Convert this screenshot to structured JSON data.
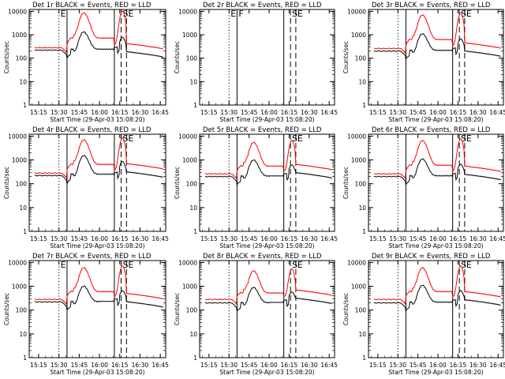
{
  "chart_data": [
    {
      "type": "line",
      "title": "Det 1r  BLACK = Events, RED = LLD",
      "ylabel": "Counts/sec",
      "xlabel": "Start Time (29-Apr-03 15:08:20)",
      "x_ticks": [
        "15:15",
        "15:30",
        "15:45",
        "16:00",
        "16:15",
        "16:30",
        "16:45"
      ],
      "y_ticks": [
        "1",
        "10",
        "100",
        "1000",
        "10000"
      ],
      "ylim": [
        1,
        12000
      ],
      "scale": "log",
      "markers": [
        {
          "time": "15:30",
          "style": "dotted",
          "label": "E"
        },
        {
          "time": "15:36",
          "style": "solid",
          "label": ""
        },
        {
          "time": "16:11",
          "style": "solid",
          "label": ""
        },
        {
          "time": "16:16",
          "style": "dashed",
          "label": "S"
        },
        {
          "time": "16:20",
          "style": "dashed",
          "label": "E"
        }
      ],
      "series": [
        {
          "name": "Events",
          "color": "#000000"
        },
        {
          "name": "LLD",
          "color": "#ff0000"
        }
      ],
      "peak_red": 8000,
      "peak_black": 1100,
      "base_red": 280,
      "base_black": 220,
      "lld_late": 420
    },
    {
      "type": "line",
      "title": "Det 2r  BLACK = Events, RED = LLD",
      "ylabel": "Counts/sec",
      "xlabel": "Start Time (29-Apr-03 15:08:20)",
      "x_ticks": [
        "15:15",
        "15:30",
        "15:45",
        "16:00",
        "16:15",
        "16:30",
        "16:45"
      ],
      "y_ticks": [
        "1",
        "10",
        "100",
        "1000",
        "10000"
      ],
      "ylim": [
        1,
        12000
      ],
      "scale": "log",
      "markers": [
        {
          "time": "15:30",
          "style": "dotted",
          "label": "E"
        },
        {
          "time": "15:36",
          "style": "solid",
          "label": "F"
        },
        {
          "time": "16:11",
          "style": "solid",
          "label": ""
        },
        {
          "time": "16:16",
          "style": "dashed",
          "label": "S"
        },
        {
          "time": "16:20",
          "style": "dashed",
          "label": "E"
        }
      ],
      "series": [
        {
          "name": "Events",
          "color": "#000000"
        },
        {
          "name": "LLD",
          "color": "#ff0000"
        }
      ],
      "empty": true
    },
    {
      "type": "line",
      "title": "Det 3r  BLACK = Events, RED = LLD",
      "ylabel": "Counts/sec",
      "xlabel": "Start Time (29-Apr-03 15:08:20)",
      "x_ticks": [
        "15:15",
        "15:30",
        "15:45",
        "16:00",
        "16:15",
        "16:30",
        "16:45"
      ],
      "y_ticks": [
        "1",
        "10",
        "100",
        "1000",
        "10000"
      ],
      "ylim": [
        1,
        12000
      ],
      "scale": "log",
      "markers": [
        {
          "time": "15:30",
          "style": "dotted",
          "label": ""
        },
        {
          "time": "15:36",
          "style": "solid",
          "label": ""
        },
        {
          "time": "16:11",
          "style": "solid",
          "label": ""
        },
        {
          "time": "16:16",
          "style": "dashed",
          "label": "S"
        },
        {
          "time": "16:20",
          "style": "dashed",
          "label": "E"
        }
      ],
      "series": [
        {
          "name": "Events",
          "color": "#000000"
        },
        {
          "name": "LLD",
          "color": "#ff0000"
        }
      ],
      "peak_red": 6500,
      "peak_black": 900,
      "base_red": 260,
      "base_black": 200,
      "lld_late": 450
    },
    {
      "type": "line",
      "title": "Det 4r  BLACK = Events, RED = LLD",
      "ylabel": "Counts/sec",
      "xlabel": "Start Time (29-Apr-03 15:08:20)",
      "x_ticks": [
        "15:15",
        "15:30",
        "15:45",
        "16:00",
        "16:15",
        "16:30",
        "16:45"
      ],
      "y_ticks": [
        "1",
        "10",
        "100",
        "1000",
        "10000"
      ],
      "ylim": [
        1,
        12000
      ],
      "scale": "log",
      "markers": [
        {
          "time": "15:30",
          "style": "dotted",
          "label": ""
        },
        {
          "time": "15:36",
          "style": "solid",
          "label": ""
        },
        {
          "time": "16:11",
          "style": "solid",
          "label": ""
        },
        {
          "time": "16:16",
          "style": "dashed",
          "label": "S"
        },
        {
          "time": "16:20",
          "style": "dashed",
          "label": "E"
        }
      ],
      "series": [
        {
          "name": "Events",
          "color": "#000000"
        },
        {
          "name": "LLD",
          "color": "#ff0000"
        }
      ],
      "peak_red": 6500,
      "peak_black": 1300,
      "base_red": 280,
      "base_black": 220,
      "lld_late": 700
    },
    {
      "type": "line",
      "title": "Det 5r  BLACK = Events, RED = LLD",
      "ylabel": "Counts/sec",
      "xlabel": "Start Time (29-Apr-03 15:08:20)",
      "x_ticks": [
        "15:15",
        "15:30",
        "15:45",
        "16:00",
        "16:15",
        "16:30",
        "16:45"
      ],
      "y_ticks": [
        "1",
        "10",
        "100",
        "1000",
        "10000"
      ],
      "ylim": [
        1,
        12000
      ],
      "scale": "log",
      "markers": [
        {
          "time": "15:30",
          "style": "dotted",
          "label": ""
        },
        {
          "time": "15:36",
          "style": "solid",
          "label": ""
        },
        {
          "time": "16:11",
          "style": "solid",
          "label": ""
        },
        {
          "time": "16:16",
          "style": "dashed",
          "label": "S"
        },
        {
          "time": "16:20",
          "style": "dashed",
          "label": "E"
        }
      ],
      "series": [
        {
          "name": "Events",
          "color": "#000000"
        },
        {
          "name": "LLD",
          "color": "#ff0000"
        }
      ],
      "peak_red": 5000,
      "peak_black": 800,
      "base_red": 260,
      "base_black": 200,
      "lld_late": 650
    },
    {
      "type": "line",
      "title": "Det 6r  BLACK = Events, RED = LLD",
      "ylabel": "Counts/sec",
      "xlabel": "Start Time (29-Apr-03 15:08:20)",
      "x_ticks": [
        "15:15",
        "15:30",
        "15:45",
        "16:00",
        "16:15",
        "16:30",
        "16:45"
      ],
      "y_ticks": [
        "1",
        "10",
        "100",
        "1000",
        "10000"
      ],
      "ylim": [
        1,
        12000
      ],
      "scale": "log",
      "markers": [
        {
          "time": "15:30",
          "style": "dotted",
          "label": ""
        },
        {
          "time": "15:36",
          "style": "solid",
          "label": ""
        },
        {
          "time": "16:11",
          "style": "solid",
          "label": ""
        },
        {
          "time": "16:16",
          "style": "dashed",
          "label": "S"
        },
        {
          "time": "16:20",
          "style": "dashed",
          "label": "E"
        }
      ],
      "series": [
        {
          "name": "Events",
          "color": "#000000"
        },
        {
          "name": "LLD",
          "color": "#ff0000"
        }
      ],
      "peak_red": 6000,
      "peak_black": 900,
      "base_red": 260,
      "base_black": 200,
      "lld_late": 550
    },
    {
      "type": "line",
      "title": "Det 7r  BLACK = Events, RED = LLD",
      "ylabel": "Counts/sec",
      "xlabel": "Start Time (29-Apr-03 15:08:20)",
      "x_ticks": [
        "15:15",
        "15:30",
        "15:45",
        "16:00",
        "16:15",
        "16:30",
        "16:45"
      ],
      "y_ticks": [
        "1",
        "10",
        "100",
        "1000",
        "10000"
      ],
      "ylim": [
        1,
        12000
      ],
      "scale": "log",
      "markers": [
        {
          "time": "15:30",
          "style": "dotted",
          "label": "E"
        },
        {
          "time": "15:36",
          "style": "solid",
          "label": ""
        },
        {
          "time": "16:11",
          "style": "solid",
          "label": ""
        },
        {
          "time": "16:16",
          "style": "dashed",
          "label": "S"
        },
        {
          "time": "16:20",
          "style": "dashed",
          "label": "E"
        }
      ],
      "series": [
        {
          "name": "Events",
          "color": "#000000"
        },
        {
          "name": "LLD",
          "color": "#ff0000"
        }
      ],
      "peak_red": 5500,
      "peak_black": 800,
      "base_red": 280,
      "base_black": 220,
      "lld_late": 500
    },
    {
      "type": "line",
      "title": "Det 8r  BLACK = Events, RED = LLD",
      "ylabel": "Counts/sec",
      "xlabel": "Start Time (29-Apr-03 15:08:20)",
      "x_ticks": [
        "15:15",
        "15:30",
        "15:45",
        "16:00",
        "16:15",
        "16:30",
        "16:45"
      ],
      "y_ticks": [
        "1",
        "10",
        "100",
        "1000",
        "10000"
      ],
      "ylim": [
        1,
        12000
      ],
      "scale": "log",
      "markers": [
        {
          "time": "15:30",
          "style": "dotted",
          "label": ""
        },
        {
          "time": "15:36",
          "style": "solid",
          "label": ""
        },
        {
          "time": "16:11",
          "style": "solid",
          "label": ""
        },
        {
          "time": "16:16",
          "style": "dashed",
          "label": "S"
        },
        {
          "time": "16:20",
          "style": "dashed",
          "label": "E"
        }
      ],
      "series": [
        {
          "name": "Events",
          "color": "#000000"
        },
        {
          "name": "LLD",
          "color": "#ff0000"
        }
      ],
      "peak_red": 4000,
      "peak_black": 700,
      "base_red": 280,
      "base_black": 200,
      "lld_late": 700
    },
    {
      "type": "line",
      "title": "Det 9r  BLACK = Events, RED = LLD",
      "ylabel": "Counts/sec",
      "xlabel": "Start Time (29-Apr-03 15:08:20)",
      "x_ticks": [
        "15:15",
        "15:30",
        "15:45",
        "16:00",
        "16:15",
        "16:30",
        "16:45"
      ],
      "y_ticks": [
        "1",
        "10",
        "100",
        "1000",
        "10000"
      ],
      "ylim": [
        1,
        12000
      ],
      "scale": "log",
      "markers": [
        {
          "time": "15:30",
          "style": "dotted",
          "label": ""
        },
        {
          "time": "15:36",
          "style": "solid",
          "label": ""
        },
        {
          "time": "16:11",
          "style": "solid",
          "label": ""
        },
        {
          "time": "16:16",
          "style": "dashed",
          "label": "S"
        },
        {
          "time": "16:20",
          "style": "dashed",
          "label": "E"
        }
      ],
      "series": [
        {
          "name": "Events",
          "color": "#000000"
        },
        {
          "name": "LLD",
          "color": "#ff0000"
        }
      ],
      "peak_red": 5500,
      "peak_black": 900,
      "base_red": 280,
      "base_black": 200,
      "lld_late": 600
    }
  ]
}
